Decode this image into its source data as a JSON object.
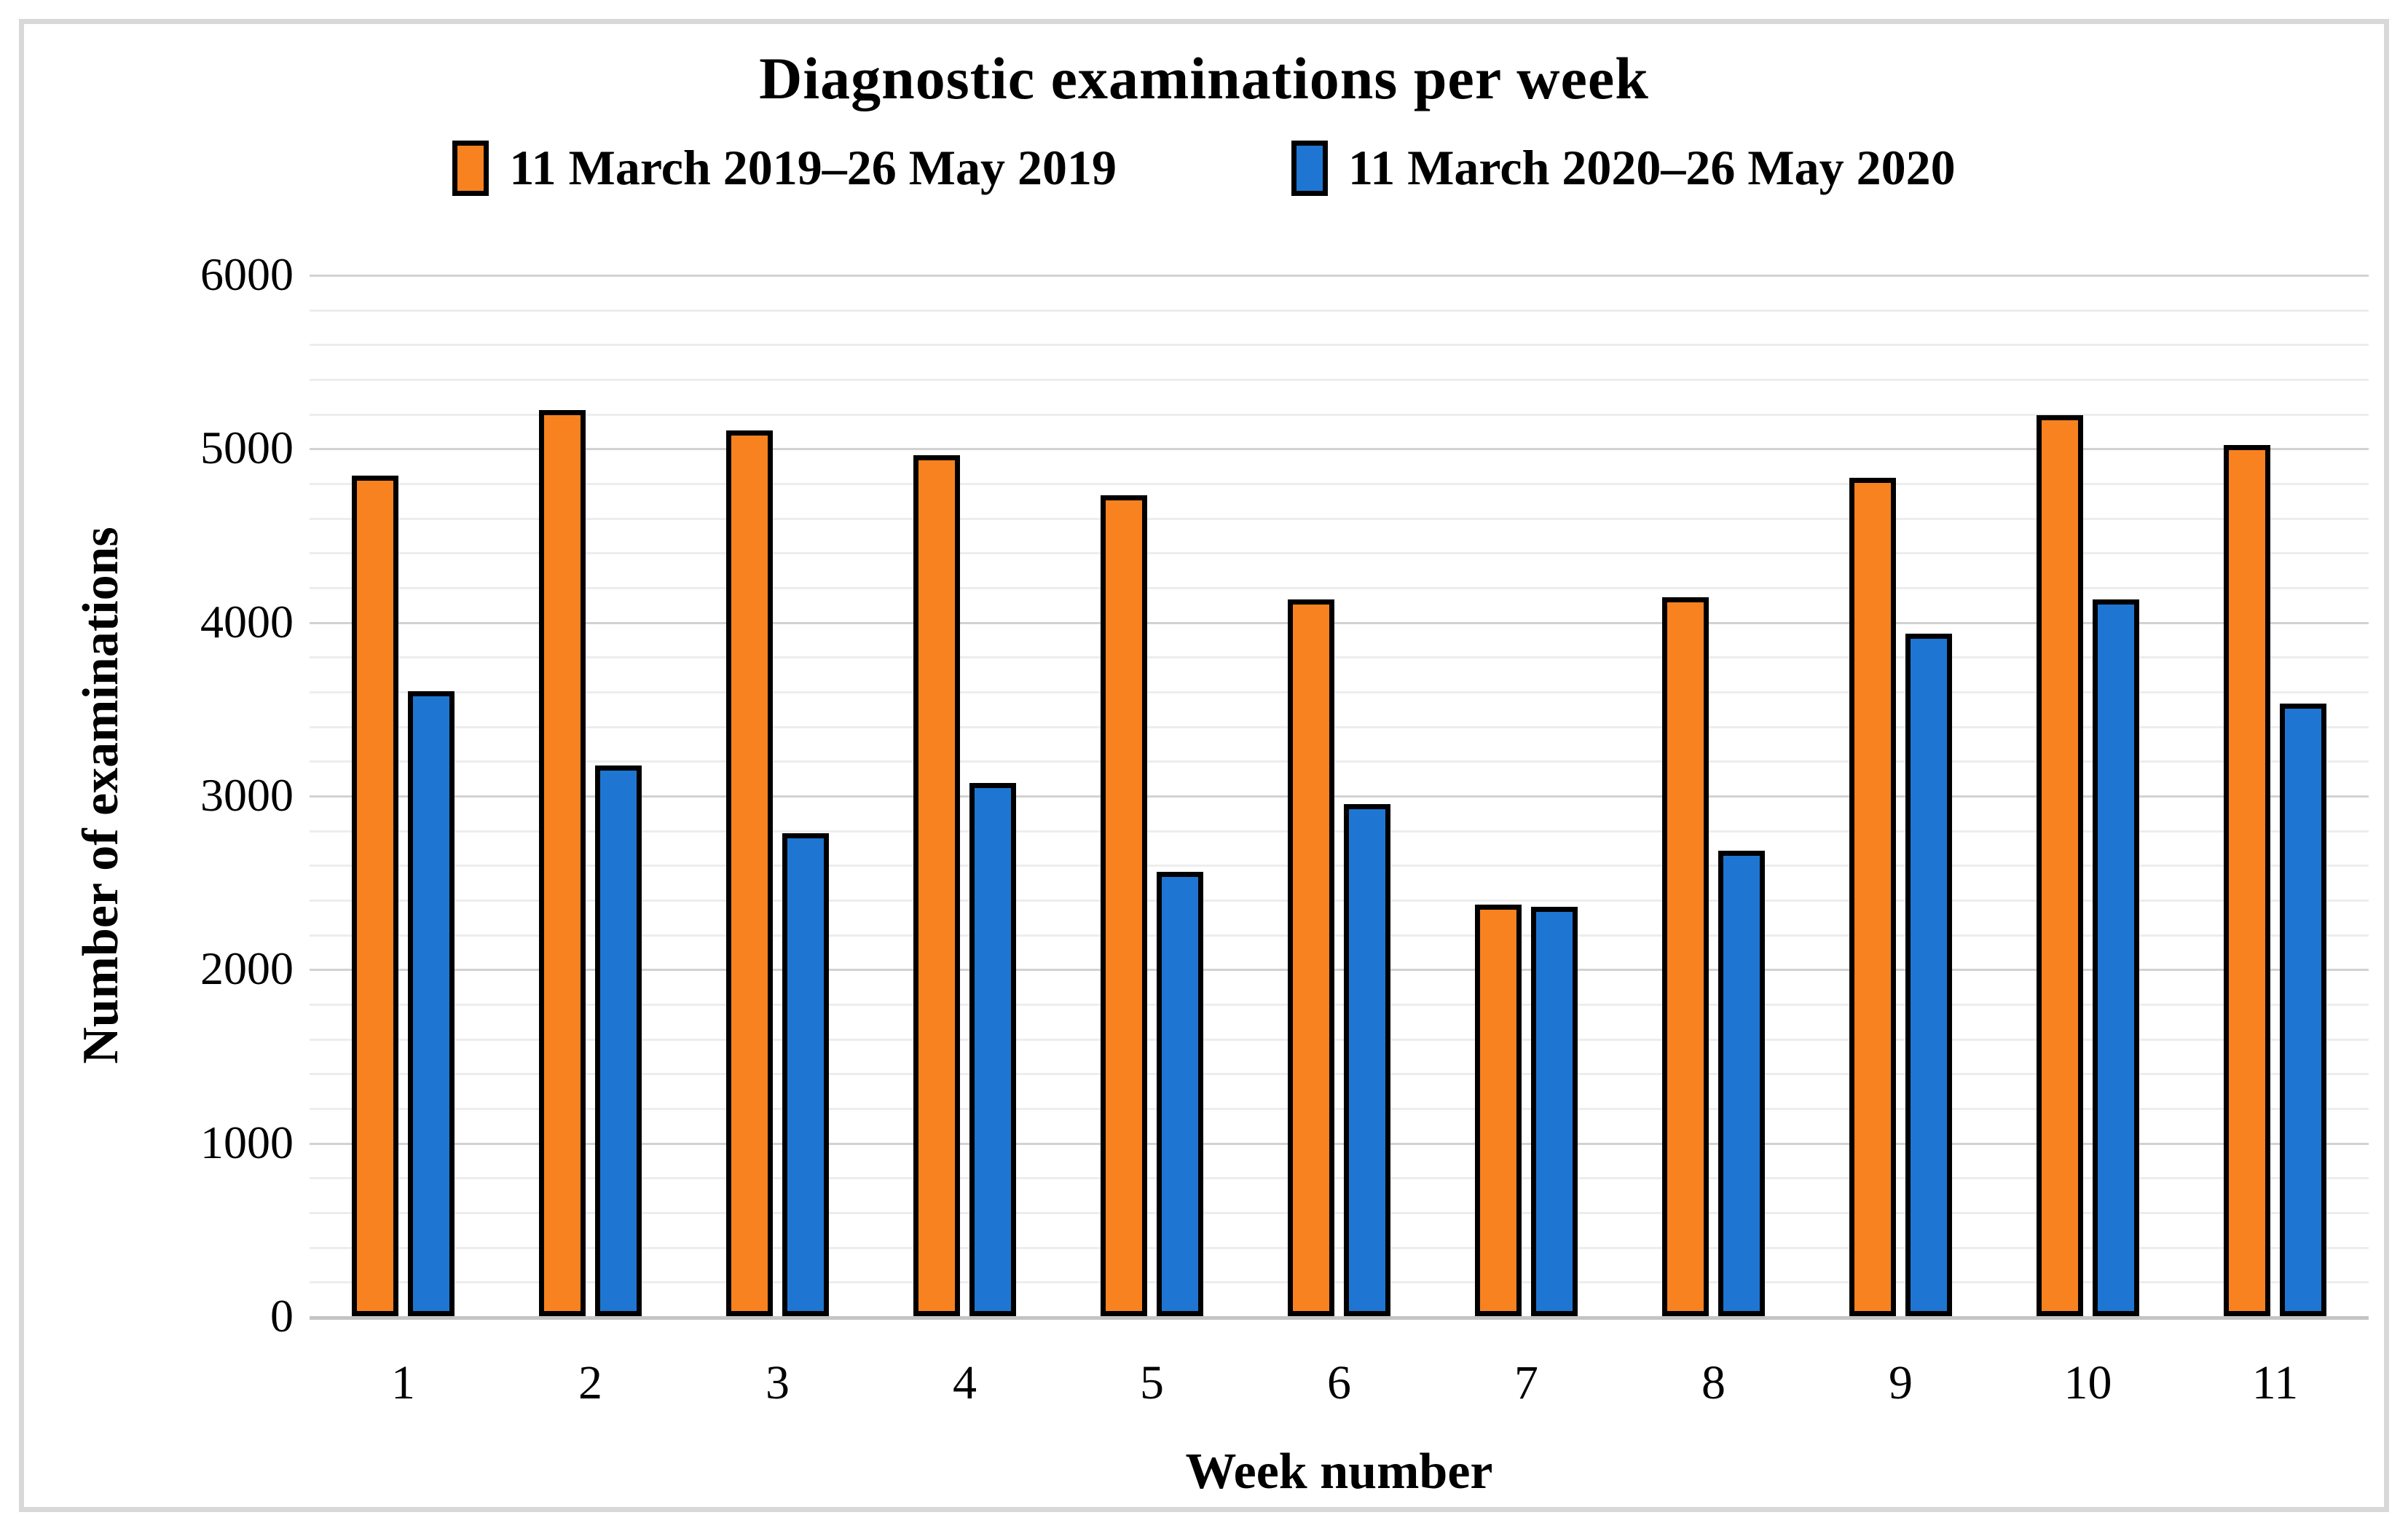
{
  "chart_data": {
    "type": "bar",
    "title": "Diagnostic examinations per week",
    "xlabel": "Week number",
    "ylabel": "Number of examinations",
    "categories": [
      "1",
      "2",
      "3",
      "4",
      "5",
      "6",
      "7",
      "8",
      "9",
      "10",
      "11"
    ],
    "series": [
      {
        "name": "11 March 2019–26 May 2019",
        "color": "#f8821f",
        "values": [
          4840,
          5220,
          5100,
          4960,
          4730,
          4130,
          2370,
          4140,
          4830,
          5190,
          5020
        ]
      },
      {
        "name": "11 March 2020–26 May 2020",
        "color": "#1e76d2",
        "values": [
          3600,
          3170,
          2780,
          3070,
          2560,
          2950,
          2360,
          2680,
          3930,
          4130,
          3530
        ]
      }
    ],
    "ylim": [
      0,
      6000
    ],
    "y_major_step": 1000,
    "y_minor_step": 200,
    "y_tick_labels": [
      "0",
      "1000",
      "2000",
      "3000",
      "4000",
      "5000",
      "6000"
    ],
    "grid": "on",
    "legend_position": "top",
    "bar_outline_color": "#000000"
  }
}
